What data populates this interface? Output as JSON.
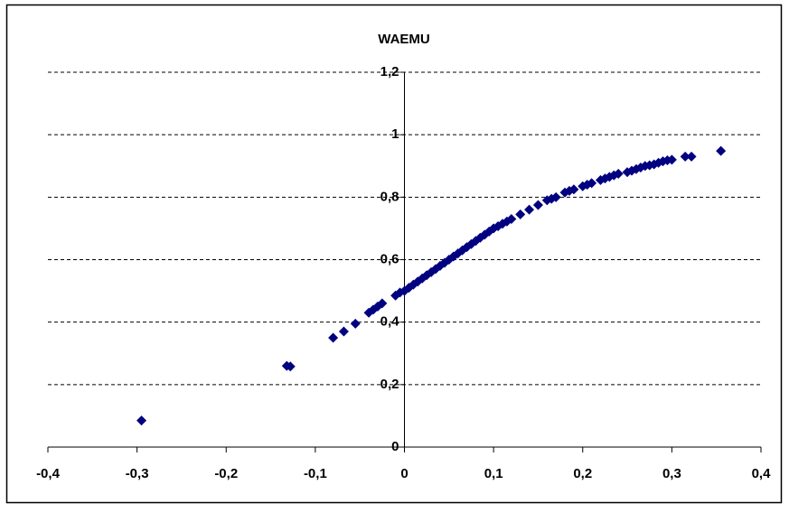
{
  "chart_data": {
    "type": "scatter",
    "title": "WAEMU",
    "x": [
      -0.295,
      -0.132,
      -0.128,
      -0.08,
      -0.068,
      -0.055,
      -0.04,
      -0.035,
      -0.03,
      -0.025,
      -0.01,
      -0.005,
      0,
      0.005,
      0.01,
      0.015,
      0.02,
      0.025,
      0.03,
      0.035,
      0.04,
      0.045,
      0.05,
      0.055,
      0.06,
      0.065,
      0.07,
      0.075,
      0.08,
      0.085,
      0.09,
      0.095,
      0.1,
      0.105,
      0.11,
      0.115,
      0.12,
      0.13,
      0.14,
      0.15,
      0.16,
      0.165,
      0.17,
      0.18,
      0.185,
      0.19,
      0.2,
      0.205,
      0.21,
      0.22,
      0.225,
      0.23,
      0.235,
      0.24,
      0.25,
      0.255,
      0.26,
      0.265,
      0.27,
      0.275,
      0.28,
      0.285,
      0.29,
      0.295,
      0.3,
      0.315,
      0.322,
      0.355
    ],
    "values": [
      0.085,
      0.26,
      0.258,
      0.35,
      0.37,
      0.395,
      0.43,
      0.44,
      0.45,
      0.46,
      0.485,
      0.495,
      0.5,
      0.51,
      0.52,
      0.53,
      0.54,
      0.55,
      0.56,
      0.57,
      0.58,
      0.59,
      0.6,
      0.61,
      0.62,
      0.63,
      0.64,
      0.65,
      0.66,
      0.67,
      0.68,
      0.69,
      0.7,
      0.707,
      0.715,
      0.722,
      0.73,
      0.745,
      0.76,
      0.775,
      0.79,
      0.795,
      0.8,
      0.815,
      0.82,
      0.825,
      0.835,
      0.84,
      0.845,
      0.855,
      0.86,
      0.865,
      0.87,
      0.875,
      0.88,
      0.885,
      0.89,
      0.895,
      0.9,
      0.902,
      0.905,
      0.91,
      0.915,
      0.918,
      0.92,
      0.93,
      0.93,
      0.948
    ],
    "color": "#000080",
    "marker": "diamond",
    "xlim": [
      -0.4,
      0.4
    ],
    "xticks": [
      {
        "value": -0.4,
        "label": "-0,4"
      },
      {
        "value": -0.3,
        "label": "-0,3"
      },
      {
        "value": -0.2,
        "label": "-0,2"
      },
      {
        "value": -0.1,
        "label": "-0,1"
      },
      0,
      {
        "value": 0.1,
        "label": "0,1"
      },
      {
        "value": 0.2,
        "label": "0,2"
      },
      {
        "value": 0.3,
        "label": "0,3"
      },
      {
        "value": 0.4,
        "label": "0,4"
      }
    ],
    "ylim": [
      0,
      1.2
    ],
    "yticks": [
      0,
      {
        "value": 0.2,
        "label": "0,2"
      },
      {
        "value": 0.4,
        "label": "0,4"
      },
      {
        "value": 0.6,
        "label": "0,6"
      },
      {
        "value": 0.8,
        "label": "0,8"
      },
      1,
      {
        "value": 1.2,
        "label": "1,2"
      }
    ],
    "grid": true
  }
}
